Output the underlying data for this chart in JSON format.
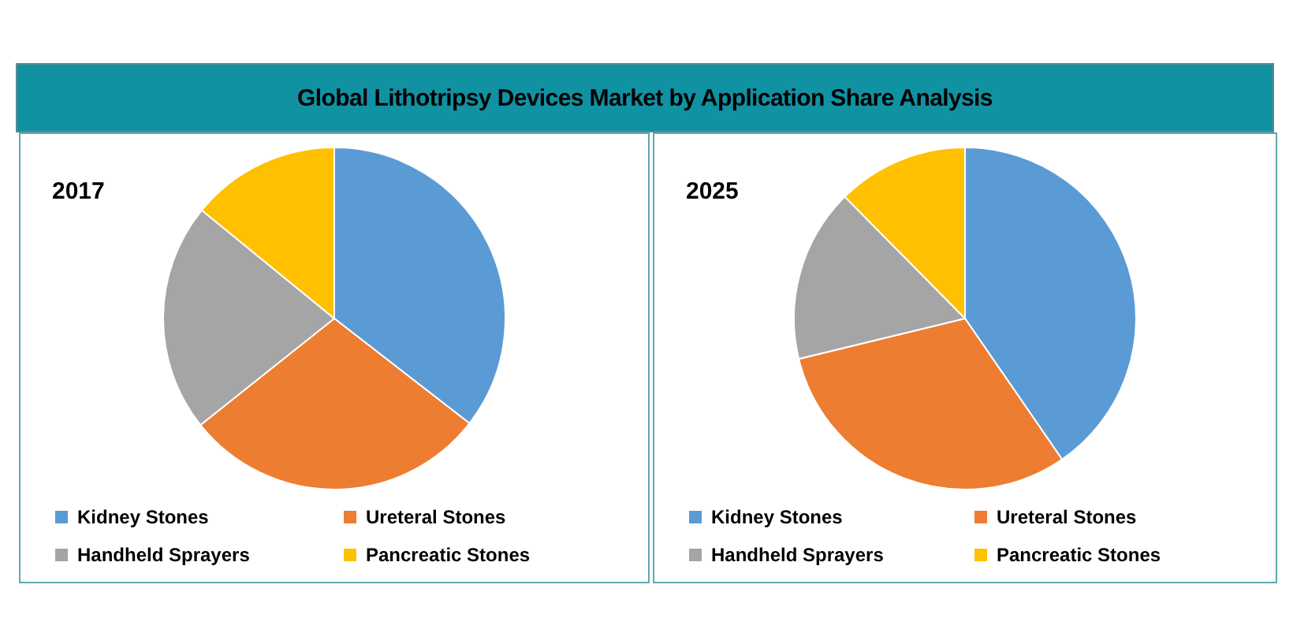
{
  "chart_data": [
    {
      "type": "pie",
      "title": "2017",
      "annotations": [
        "Global Lithotripsy Devices Market by Application Share Analysis"
      ],
      "categories": [
        "Kidney Stones",
        "Ureteral Stones",
        "Handheld Sprayers",
        "Pancreatic Stones"
      ],
      "values": [
        35.5,
        28.8,
        21.6,
        14.1
      ],
      "colors": [
        "#5b9bd5",
        "#ed7d31",
        "#a5a5a5",
        "#ffc000"
      ],
      "legend": "bottom"
    },
    {
      "type": "pie",
      "title": "2025",
      "categories": [
        "Kidney Stones",
        "Ureteral Stones",
        "Handheld Sprayers",
        "Pancreatic Stones"
      ],
      "values": [
        40.4,
        30.8,
        16.4,
        12.4
      ],
      "colors": [
        "#5b9bd5",
        "#ed7d31",
        "#a5a5a5",
        "#ffc000"
      ],
      "legend": "bottom"
    }
  ]
}
